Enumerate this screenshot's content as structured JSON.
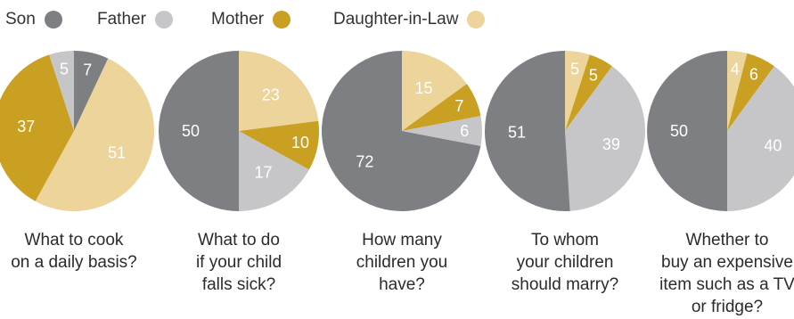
{
  "legend": [
    {
      "label": "Son",
      "color": "#7e7f83"
    },
    {
      "label": "Father",
      "color": "#c6c6c8"
    },
    {
      "label": "Mother",
      "color": "#c9a021"
    },
    {
      "label": "Daughter-in-Law",
      "color": "#ecd49a"
    }
  ],
  "chart_data": [
    {
      "type": "pie",
      "caption_lines": [
        "What to cook",
        "on a daily basis?"
      ],
      "slices": [
        {
          "series": "Son",
          "value": 7
        },
        {
          "series": "Daughter-in-Law",
          "value": 51
        },
        {
          "series": "Mother",
          "value": 37
        },
        {
          "series": "Father",
          "value": 5
        }
      ]
    },
    {
      "type": "pie",
      "caption_lines": [
        "What to do",
        "if your child",
        "falls sick?"
      ],
      "slices": [
        {
          "series": "Daughter-in-Law",
          "value": 23
        },
        {
          "series": "Mother",
          "value": 10
        },
        {
          "series": "Father",
          "value": 17
        },
        {
          "series": "Son",
          "value": 50
        }
      ]
    },
    {
      "type": "pie",
      "caption_lines": [
        "How many",
        "children you",
        "have?"
      ],
      "slices": [
        {
          "series": "Daughter-in-Law",
          "value": 15
        },
        {
          "series": "Mother",
          "value": 7
        },
        {
          "series": "Father",
          "value": 6
        },
        {
          "series": "Son",
          "value": 72
        }
      ]
    },
    {
      "type": "pie",
      "caption_lines": [
        "To whom",
        "your children",
        "should marry?"
      ],
      "slices": [
        {
          "series": "Daughter-in-Law",
          "value": 5
        },
        {
          "series": "Mother",
          "value": 5
        },
        {
          "series": "Father",
          "value": 39
        },
        {
          "series": "Son",
          "value": 51
        }
      ]
    },
    {
      "type": "pie",
      "caption_lines": [
        "Whether to",
        "buy an expensive",
        "item such as a TV",
        "or fridge?"
      ],
      "slices": [
        {
          "series": "Daughter-in-Law",
          "value": 4
        },
        {
          "series": "Mother",
          "value": 6
        },
        {
          "series": "Father",
          "value": 40
        },
        {
          "series": "Son",
          "value": 50
        }
      ]
    }
  ]
}
